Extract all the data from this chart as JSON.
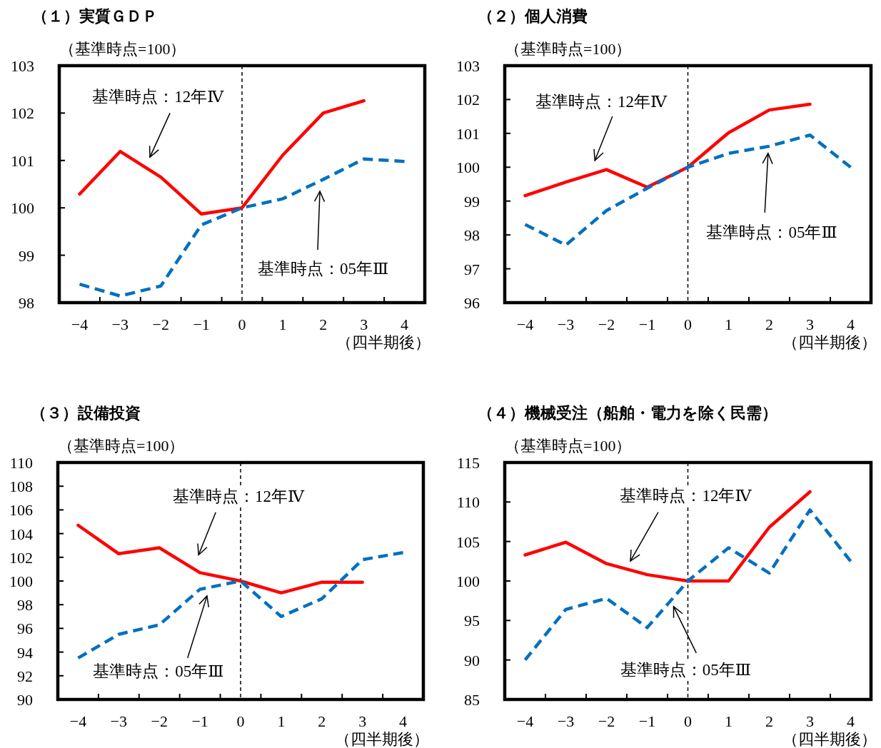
{
  "chart_data": [
    {
      "type": "line",
      "title": "（１）実質ＧＤＰ",
      "ylabel": "（基準時点=100）",
      "xlabel": "（四半期後）",
      "categories": [
        "−4",
        "−3",
        "−2",
        "−1",
        "0",
        "1",
        "2",
        "3",
        "4"
      ],
      "ylim": [
        98,
        103
      ],
      "yticks": [
        98,
        99,
        100,
        101,
        102,
        103
      ],
      "grid": false,
      "marker": "none",
      "series": [
        {
          "color": "#ff0000",
          "line_style": "solid",
          "values": [
            100.29,
            101.19,
            100.65,
            99.87,
            100,
            101.11,
            102.0,
            102.26,
            null
          ]
        },
        {
          "color": "#0070c0",
          "line_style": "dashed",
          "values": [
            98.39,
            98.14,
            98.35,
            99.64,
            100,
            100.19,
            100.6,
            101.03,
            100.98
          ]
        }
      ],
      "ref_lines": [
        {
          "axis": "x",
          "value": "0",
          "color": "#000000",
          "line_style": "dashed"
        }
      ],
      "annotations": [
        "基準時点：12年Ⅳ",
        "基準時点：05年Ⅲ"
      ]
    },
    {
      "type": "line",
      "title": "（２）個人消費",
      "ylabel": "（基準時点=100）",
      "xlabel": "（四半期後）",
      "categories": [
        "−4",
        "−3",
        "−2",
        "−1",
        "0",
        "1",
        "2",
        "3",
        "4"
      ],
      "ylim": [
        96,
        103
      ],
      "yticks": [
        96,
        97,
        98,
        99,
        100,
        101,
        102,
        103
      ],
      "grid": false,
      "marker": "none",
      "series": [
        {
          "color": "#ff0000",
          "line_style": "solid",
          "values": [
            99.16,
            99.56,
            99.93,
            99.41,
            100,
            101.02,
            101.69,
            101.86,
            null
          ]
        },
        {
          "color": "#0070c0",
          "line_style": "dashed",
          "values": [
            98.31,
            97.7,
            98.72,
            99.38,
            100,
            100.41,
            100.62,
            100.95,
            100
          ]
        }
      ],
      "ref_lines": [
        {
          "axis": "x",
          "value": "0",
          "color": "#000000",
          "line_style": "dashed"
        }
      ],
      "annotations": [
        "基準時点：12年Ⅳ",
        "基準時点：05年Ⅲ"
      ]
    },
    {
      "type": "line",
      "title": "（３）設備投資",
      "ylabel": "（基準時点=100）",
      "xlabel": "（四半期後）",
      "categories": [
        "−4",
        "−3",
        "−2",
        "−1",
        "0",
        "1",
        "2",
        "3",
        "4"
      ],
      "ylim": [
        90,
        110
      ],
      "yticks": [
        90,
        92,
        94,
        96,
        98,
        100,
        102,
        104,
        106,
        108,
        110
      ],
      "grid": false,
      "marker": "none",
      "series": [
        {
          "color": "#ff0000",
          "line_style": "solid",
          "values": [
            104.7,
            102.3,
            102.8,
            100.7,
            100,
            99.0,
            99.9,
            99.9,
            null
          ]
        },
        {
          "color": "#0070c0",
          "line_style": "dashed",
          "values": [
            93.5,
            95.5,
            96.3,
            99.3,
            100,
            97.0,
            98.5,
            101.8,
            102.4
          ]
        }
      ],
      "ref_lines": [
        {
          "axis": "x",
          "value": "0",
          "color": "#000000",
          "line_style": "dashed"
        }
      ],
      "annotations": [
        "基準時点：12年Ⅳ",
        "基準時点：05年Ⅲ"
      ]
    },
    {
      "type": "line",
      "title": "（４）機械受注（船舶・電力を除く民需）",
      "ylabel": "（基準時点=100）",
      "xlabel": "（四半期後）",
      "categories": [
        "−4",
        "−3",
        "−2",
        "−1",
        "0",
        "1",
        "2",
        "3",
        "4"
      ],
      "ylim": [
        85,
        115
      ],
      "yticks": [
        85,
        90,
        95,
        100,
        105,
        110,
        115
      ],
      "grid": false,
      "marker": "none",
      "series": [
        {
          "color": "#ff0000",
          "line_style": "solid",
          "values": [
            103.3,
            104.9,
            102.2,
            100.8,
            100,
            100,
            106.8,
            111.3,
            null
          ]
        },
        {
          "color": "#0070c0",
          "line_style": "dashed",
          "values": [
            90.0,
            96.4,
            97.8,
            94.1,
            100,
            104.2,
            101.0,
            109.0,
            102.5
          ]
        }
      ],
      "ref_lines": [
        {
          "axis": "x",
          "value": "0",
          "color": "#000000",
          "line_style": "dashed"
        }
      ],
      "annotations": [
        "基準時点：12年Ⅳ",
        "基準時点：05年Ⅲ"
      ]
    }
  ]
}
